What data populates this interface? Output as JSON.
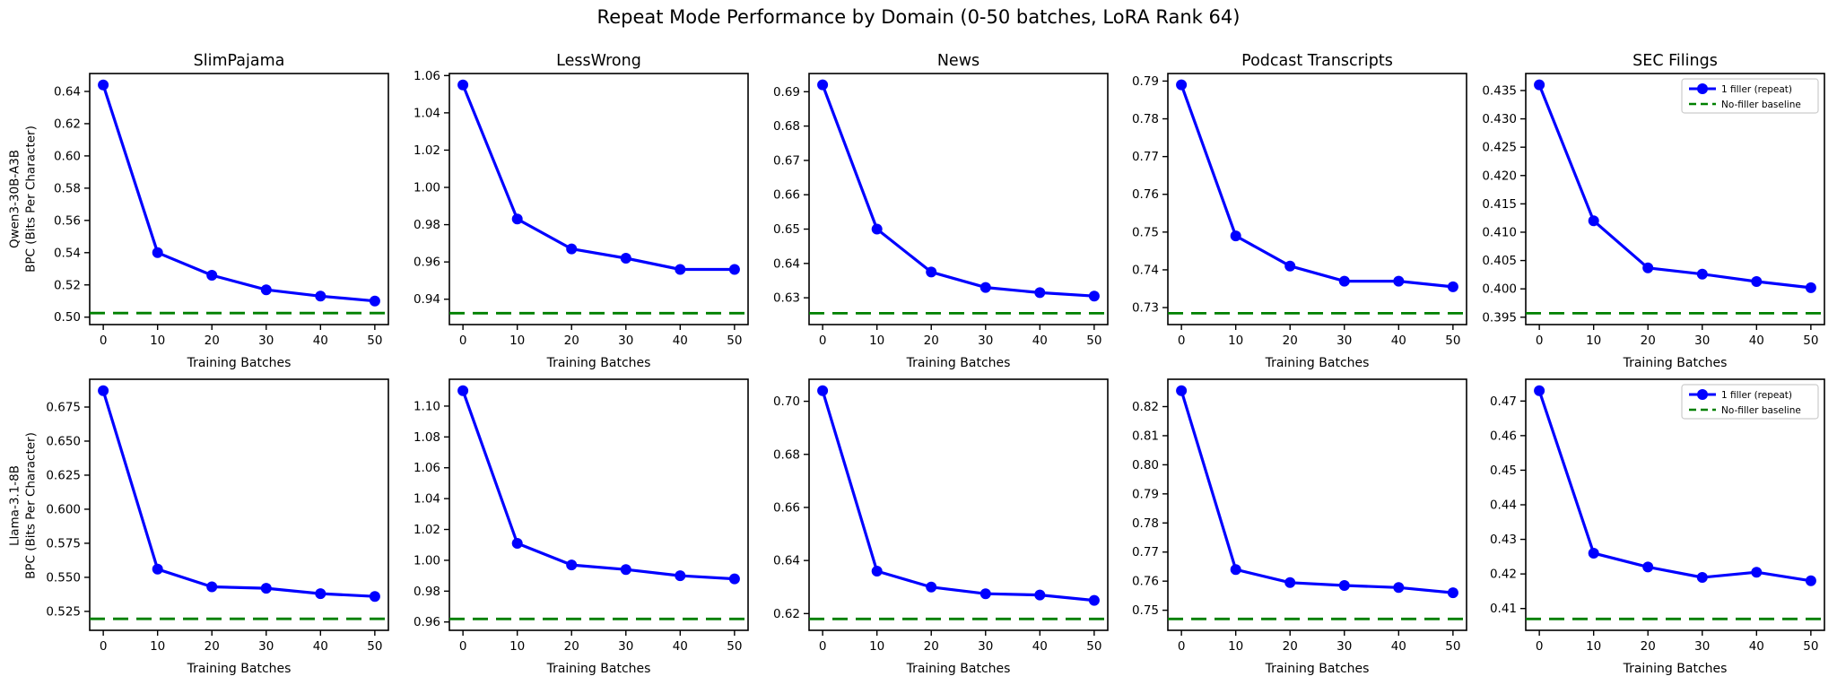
{
  "figure": {
    "title": "Repeat Mode Performance by Domain (0-50 batches, LoRA Rank 64)",
    "background": "#ffffff"
  },
  "colors": {
    "series": "#0000ff",
    "baseline": "#008000",
    "frame": "#000000",
    "legend_border": "#cccccc"
  },
  "legend": {
    "position": "upper-right of last column subplots",
    "entries": [
      {
        "label": "1 filler (repeat)",
        "color": "#0000ff",
        "style": "solid-line-with-circle-marker"
      },
      {
        "label": "No-filler baseline",
        "color": "#008000",
        "style": "dashed-line"
      }
    ]
  },
  "axes": {
    "xlabel": "Training Batches",
    "x_ticks": [
      0,
      10,
      20,
      30,
      40,
      50
    ],
    "xlim": [
      -2.5,
      52.5
    ],
    "grid": false
  },
  "rows": [
    {
      "model": "Qwen3-30B-A3B",
      "ylabel": "BPC (Bits Per Character)"
    },
    {
      "model": "Llama-3.1-8B",
      "ylabel": "BPC (Bits Per Character)"
    }
  ],
  "columns": [
    "SlimPajama",
    "LessWrong",
    "News",
    "Podcast Transcripts",
    "SEC Filings"
  ],
  "chart_data": [
    {
      "type": "line",
      "model": "Qwen3-30B-A3B",
      "domain": "SlimPajama",
      "x": [
        0,
        10,
        20,
        30,
        40,
        50
      ],
      "values": [
        0.644,
        0.54,
        0.526,
        0.517,
        0.513,
        0.51
      ],
      "baseline": 0.5025,
      "y_ticks": [
        0.5,
        0.52,
        0.54,
        0.56,
        0.58,
        0.6,
        0.62,
        0.64
      ],
      "tick_decimals": 2,
      "ylim": [
        0.4954,
        0.6511
      ]
    },
    {
      "type": "line",
      "model": "Qwen3-30B-A3B",
      "domain": "LessWrong",
      "x": [
        0,
        10,
        20,
        30,
        40,
        50
      ],
      "values": [
        1.055,
        0.983,
        0.967,
        0.962,
        0.956,
        0.956
      ],
      "baseline": 0.9325,
      "y_ticks": [
        0.94,
        0.96,
        0.98,
        1.0,
        1.02,
        1.04,
        1.06
      ],
      "tick_decimals": 2,
      "ylim": [
        0.9264,
        1.0611
      ]
    },
    {
      "type": "line",
      "model": "Qwen3-30B-A3B",
      "domain": "News",
      "x": [
        0,
        10,
        20,
        30,
        40,
        50
      ],
      "values": [
        0.692,
        0.65,
        0.6375,
        0.633,
        0.6315,
        0.6305
      ],
      "baseline": 0.6255,
      "y_ticks": [
        0.63,
        0.64,
        0.65,
        0.66,
        0.67,
        0.68,
        0.69
      ],
      "tick_decimals": 2,
      "ylim": [
        0.6222,
        0.6953
      ]
    },
    {
      "type": "line",
      "model": "Qwen3-30B-A3B",
      "domain": "Podcast Transcripts",
      "x": [
        0,
        10,
        20,
        30,
        40,
        50
      ],
      "values": [
        0.789,
        0.749,
        0.741,
        0.737,
        0.737,
        0.7355
      ],
      "baseline": 0.7285,
      "y_ticks": [
        0.73,
        0.74,
        0.75,
        0.76,
        0.77,
        0.78,
        0.79
      ],
      "tick_decimals": 2,
      "ylim": [
        0.7255,
        0.792
      ]
    },
    {
      "type": "line",
      "model": "Qwen3-30B-A3B",
      "domain": "SEC Filings",
      "x": [
        0,
        10,
        20,
        30,
        40,
        50
      ],
      "values": [
        0.436,
        0.412,
        0.4037,
        0.4026,
        0.4013,
        0.4002
      ],
      "baseline": 0.3957,
      "y_ticks": [
        0.395,
        0.4,
        0.405,
        0.41,
        0.415,
        0.42,
        0.425,
        0.43,
        0.435
      ],
      "tick_decimals": 3,
      "ylim": [
        0.3937,
        0.438
      ]
    },
    {
      "type": "line",
      "model": "Llama-3.1-8B",
      "domain": "SlimPajama",
      "x": [
        0,
        10,
        20,
        30,
        40,
        50
      ],
      "values": [
        0.687,
        0.556,
        0.543,
        0.542,
        0.538,
        0.536
      ],
      "baseline": 0.5195,
      "y_ticks": [
        0.525,
        0.55,
        0.575,
        0.6,
        0.625,
        0.65,
        0.675
      ],
      "tick_decimals": 3,
      "ylim": [
        0.5111,
        0.6954
      ]
    },
    {
      "type": "line",
      "model": "Llama-3.1-8B",
      "domain": "LessWrong",
      "x": [
        0,
        10,
        20,
        30,
        40,
        50
      ],
      "values": [
        1.11,
        1.011,
        0.997,
        0.994,
        0.99,
        0.988
      ],
      "baseline": 0.962,
      "y_ticks": [
        0.96,
        0.98,
        1.0,
        1.02,
        1.04,
        1.06,
        1.08,
        1.1
      ],
      "tick_decimals": 2,
      "ylim": [
        0.9546,
        1.1174
      ]
    },
    {
      "type": "line",
      "model": "Llama-3.1-8B",
      "domain": "News",
      "x": [
        0,
        10,
        20,
        30,
        40,
        50
      ],
      "values": [
        0.704,
        0.636,
        0.63,
        0.6275,
        0.627,
        0.625
      ],
      "baseline": 0.618,
      "y_ticks": [
        0.62,
        0.64,
        0.66,
        0.68,
        0.7
      ],
      "tick_decimals": 2,
      "ylim": [
        0.6137,
        0.7083
      ]
    },
    {
      "type": "line",
      "model": "Llama-3.1-8B",
      "domain": "Podcast Transcripts",
      "x": [
        0,
        10,
        20,
        30,
        40,
        50
      ],
      "values": [
        0.8255,
        0.764,
        0.7595,
        0.7585,
        0.7578,
        0.756
      ],
      "baseline": 0.747,
      "y_ticks": [
        0.75,
        0.76,
        0.77,
        0.78,
        0.79,
        0.8,
        0.81,
        0.82
      ],
      "tick_decimals": 2,
      "ylim": [
        0.7431,
        0.8294
      ]
    },
    {
      "type": "line",
      "model": "Llama-3.1-8B",
      "domain": "SEC Filings",
      "x": [
        0,
        10,
        20,
        30,
        40,
        50
      ],
      "values": [
        0.473,
        0.426,
        0.422,
        0.419,
        0.4205,
        0.418
      ],
      "baseline": 0.407,
      "y_ticks": [
        0.41,
        0.42,
        0.43,
        0.44,
        0.45,
        0.46,
        0.47
      ],
      "tick_decimals": 2,
      "ylim": [
        0.4037,
        0.4763
      ]
    }
  ]
}
